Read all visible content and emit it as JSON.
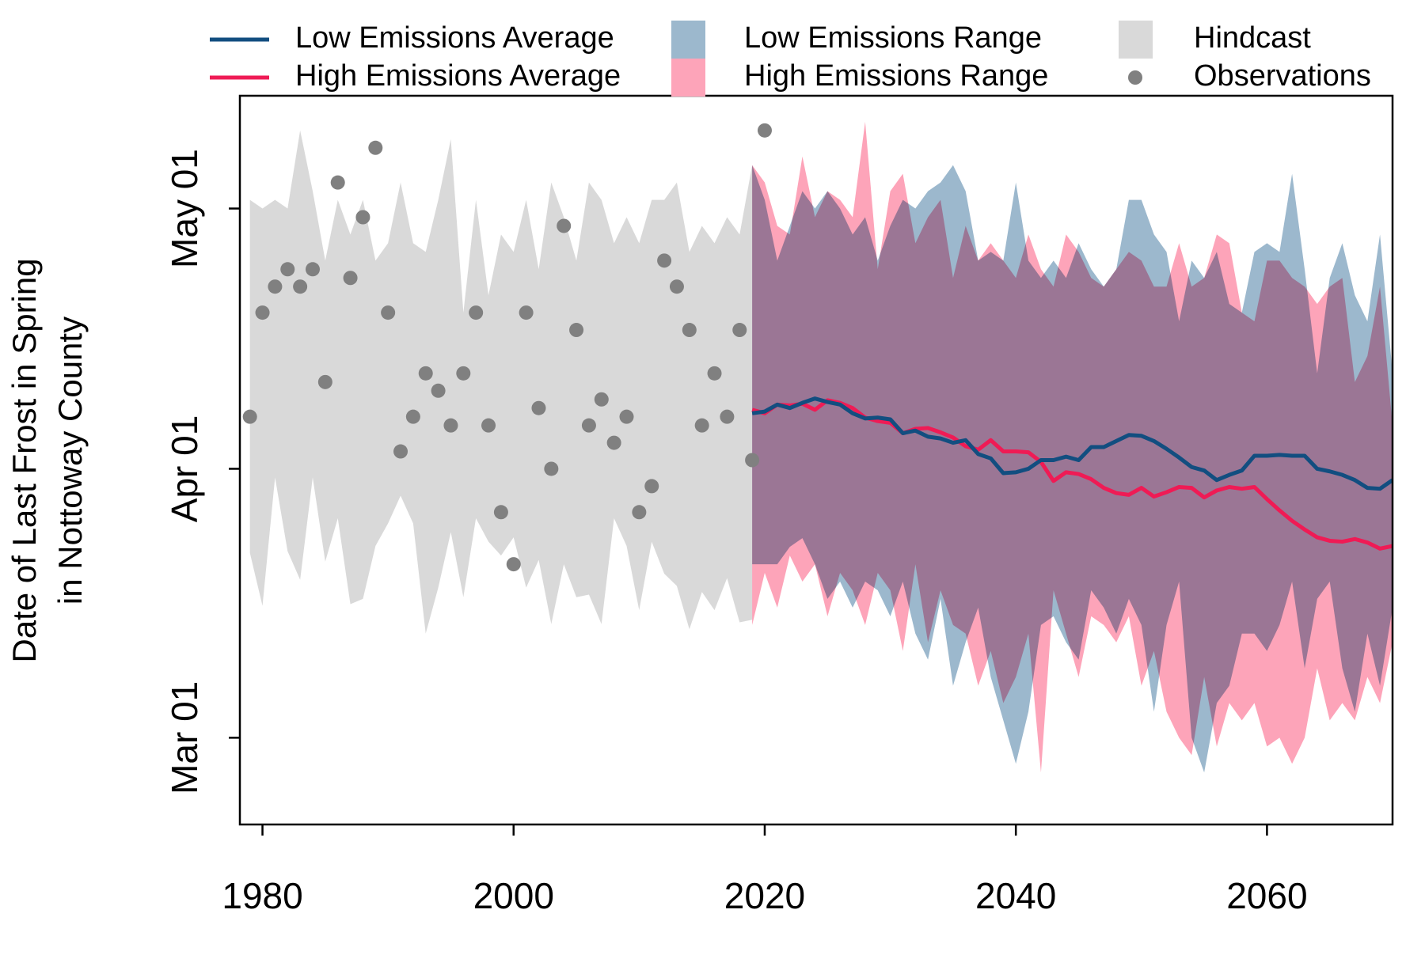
{
  "chart_data": {
    "type": "line",
    "ylabel": [
      "Date of Last Frost in Spring",
      "in Nottoway County"
    ],
    "xlim": [
      1978.2,
      2070
    ],
    "ylim": [
      50,
      134
    ],
    "xticks": [
      1980,
      2000,
      2020,
      2040,
      2060
    ],
    "yticks": [
      {
        "value": 60,
        "label": "Mar 01"
      },
      {
        "value": 91,
        "label": "Apr 01"
      },
      {
        "value": 121,
        "label": "May 01"
      }
    ],
    "legend_rows": 2,
    "series": [
      {
        "name": "Low Emissions Average",
        "kind": "line",
        "color": "#124e80",
        "x": [
          2019,
          2020,
          2021,
          2022,
          2023,
          2024,
          2025,
          2026,
          2027,
          2028,
          2029,
          2030,
          2031,
          2032,
          2033,
          2034,
          2035,
          2036,
          2037,
          2038,
          2039,
          2040,
          2041,
          2042,
          2043,
          2044,
          2045,
          2046,
          2047,
          2048,
          2049,
          2050,
          2051,
          2052,
          2053,
          2054,
          2055,
          2056,
          2057,
          2058,
          2059,
          2060,
          2061,
          2062,
          2063,
          2064,
          2065,
          2066,
          2067,
          2068,
          2069,
          2070
        ],
        "values": [
          97.4,
          97.6,
          98.4,
          98.0,
          98.6,
          99.1,
          98.7,
          98.4,
          97.4,
          96.8,
          96.9,
          96.7,
          95.1,
          95.4,
          94.7,
          94.5,
          94.0,
          94.3,
          92.7,
          92.2,
          90.5,
          90.6,
          91.0,
          92.0,
          92.0,
          92.4,
          92.0,
          93.5,
          93.5,
          94.2,
          94.9,
          94.8,
          94.2,
          93.3,
          92.3,
          91.2,
          90.8,
          89.7,
          90.3,
          90.8,
          92.5,
          92.5,
          92.6,
          92.5,
          92.5,
          91.0,
          90.7,
          90.3,
          89.7,
          88.8,
          88.7,
          89.7
        ]
      },
      {
        "name": "High Emissions Average",
        "kind": "line",
        "color": "#ef1b55",
        "x": [
          2019,
          2020,
          2021,
          2022,
          2023,
          2024,
          2025,
          2026,
          2027,
          2028,
          2029,
          2030,
          2031,
          2032,
          2033,
          2034,
          2035,
          2036,
          2037,
          2038,
          2039,
          2040,
          2041,
          2042,
          2043,
          2044,
          2045,
          2046,
          2047,
          2048,
          2049,
          2050,
          2051,
          2052,
          2053,
          2054,
          2055,
          2056,
          2057,
          2058,
          2059,
          2060,
          2061,
          2062,
          2063,
          2064,
          2065,
          2066,
          2067,
          2068,
          2069,
          2070
        ],
        "values": [
          97.8,
          97.4,
          98.4,
          98.3,
          98.5,
          97.8,
          98.9,
          98.6,
          98.0,
          96.9,
          96.5,
          96.3,
          95.1,
          95.6,
          95.7,
          95.2,
          94.6,
          93.6,
          93.2,
          94.3,
          93.0,
          93.0,
          92.9,
          91.8,
          89.6,
          90.6,
          90.4,
          89.8,
          88.8,
          88.2,
          88.0,
          88.8,
          87.8,
          88.3,
          88.9,
          88.8,
          87.7,
          88.5,
          88.9,
          88.7,
          88.9,
          87.5,
          86.2,
          85.0,
          84.0,
          83.1,
          82.7,
          82.6,
          82.9,
          82.5,
          81.8,
          82.1
        ]
      },
      {
        "name": "Low Emissions Range",
        "kind": "band",
        "color": "#9cb8cd",
        "x": [
          2019,
          2020,
          2021,
          2022,
          2023,
          2024,
          2025,
          2026,
          2027,
          2028,
          2029,
          2030,
          2031,
          2032,
          2033,
          2034,
          2035,
          2036,
          2037,
          2038,
          2039,
          2040,
          2041,
          2042,
          2043,
          2044,
          2045,
          2046,
          2047,
          2048,
          2049,
          2050,
          2051,
          2052,
          2053,
          2054,
          2055,
          2056,
          2057,
          2058,
          2059,
          2060,
          2061,
          2062,
          2063,
          2064,
          2065,
          2066,
          2067,
          2068,
          2069,
          2070
        ],
        "upper": [
          126,
          122,
          115,
          119,
          123,
          121,
          123,
          121,
          118,
          120,
          115,
          119,
          122,
          121,
          123,
          124,
          126,
          123,
          115,
          116,
          115,
          124,
          115,
          113,
          115,
          113,
          117,
          114,
          112,
          114,
          122,
          122,
          118,
          116,
          108,
          115,
          113,
          116,
          110,
          109,
          116,
          117,
          116,
          125,
          114,
          102,
          113,
          117,
          111,
          108,
          118,
          102
        ],
        "lower": [
          80,
          80,
          80,
          82,
          83,
          80,
          76,
          78,
          75,
          78,
          77,
          74,
          78,
          72,
          69,
          76,
          66,
          71,
          75,
          67,
          62,
          57,
          63,
          73,
          74,
          71,
          69,
          77,
          75,
          72,
          76,
          73,
          63,
          73,
          78,
          60,
          56,
          64,
          66,
          72,
          72,
          70,
          73,
          78,
          68,
          76,
          78,
          68,
          63,
          72,
          66,
          75
        ]
      },
      {
        "name": "High Emissions Range",
        "kind": "band",
        "color": "#fda4b9",
        "x": [
          2019,
          2020,
          2021,
          2022,
          2023,
          2024,
          2025,
          2026,
          2027,
          2028,
          2029,
          2030,
          2031,
          2032,
          2033,
          2034,
          2035,
          2036,
          2037,
          2038,
          2039,
          2040,
          2041,
          2042,
          2043,
          2044,
          2045,
          2046,
          2047,
          2048,
          2049,
          2050,
          2051,
          2052,
          2053,
          2054,
          2055,
          2056,
          2057,
          2058,
          2059,
          2060,
          2061,
          2062,
          2063,
          2064,
          2065,
          2066,
          2067,
          2068,
          2069,
          2070
        ],
        "upper": [
          126,
          124,
          119,
          118,
          127,
          120,
          123,
          122,
          120,
          131,
          114,
          123,
          125,
          117,
          120,
          122,
          113,
          119,
          115,
          117,
          115,
          113,
          118,
          114,
          112,
          118,
          116,
          113,
          112,
          114,
          116,
          115,
          112,
          112,
          117,
          112,
          113,
          118,
          117,
          109,
          108,
          115,
          115,
          113,
          112,
          110,
          112,
          113,
          101,
          104,
          112,
          96
        ],
        "lower": [
          73,
          79,
          75,
          81,
          78,
          80,
          74,
          79,
          77,
          73,
          79,
          77,
          70,
          80,
          71,
          77,
          73,
          72,
          66,
          70,
          64,
          67,
          72,
          56,
          77,
          72,
          67,
          74,
          73,
          71,
          74,
          66,
          70,
          63,
          60,
          58,
          67,
          59,
          64,
          62,
          64,
          59,
          60,
          57,
          60,
          68,
          62,
          64,
          62,
          67,
          64,
          71
        ]
      },
      {
        "name": "Hindcast",
        "kind": "band",
        "color": "#d9d9d9",
        "x": [
          1979,
          1980,
          1981,
          1982,
          1983,
          1984,
          1985,
          1986,
          1987,
          1988,
          1989,
          1990,
          1991,
          1992,
          1993,
          1994,
          1995,
          1996,
          1997,
          1998,
          1999,
          2000,
          2001,
          2002,
          2003,
          2004,
          2005,
          2006,
          2007,
          2008,
          2009,
          2010,
          2011,
          2012,
          2013,
          2014,
          2015,
          2016,
          2017,
          2018,
          2019
        ],
        "upper": [
          122,
          121,
          122,
          121,
          130,
          123,
          115,
          122,
          118,
          122,
          115,
          117,
          124,
          117,
          116,
          122,
          129,
          109,
          122,
          111,
          118,
          116,
          122,
          114,
          124,
          120,
          115,
          124,
          122,
          117,
          120,
          117,
          122,
          122,
          124,
          116,
          119,
          117,
          120,
          118,
          126
        ],
        "lower": [
          81.3,
          75.2,
          90,
          81.5,
          78.2,
          90,
          80.3,
          85.3,
          75.4,
          76,
          82.1,
          84.7,
          87.9,
          84.7,
          72,
          77.3,
          83.7,
          76.2,
          85.3,
          82.6,
          81,
          83.1,
          77.3,
          80.5,
          73.1,
          80,
          76.2,
          76.5,
          73.1,
          85.3,
          82.1,
          74.7,
          82.6,
          78.9,
          77.5,
          72.5,
          76.8,
          74.7,
          78.4,
          73.3,
          73.6
        ]
      },
      {
        "name": "Observations",
        "kind": "points",
        "color": "#808080",
        "x": [
          1979,
          1980,
          1981,
          1982,
          1983,
          1984,
          1985,
          1986,
          1987,
          1988,
          1989,
          1990,
          1991,
          1992,
          1993,
          1994,
          1995,
          1996,
          1997,
          1998,
          1999,
          2000,
          2001,
          2002,
          2003,
          2004,
          2005,
          2006,
          2007,
          2008,
          2009,
          2010,
          2011,
          2012,
          2013,
          2014,
          2015,
          2016,
          2017,
          2018,
          2019,
          2020
        ],
        "values": [
          97,
          109,
          112,
          114,
          112,
          114,
          101,
          124,
          113,
          120,
          128,
          109,
          93,
          97,
          102,
          100,
          96,
          102,
          109,
          96,
          86,
          80,
          109,
          98,
          91,
          119,
          107,
          96,
          99,
          94,
          97,
          86,
          89,
          115,
          112,
          107,
          96,
          102,
          97,
          107,
          92,
          130
        ]
      }
    ]
  }
}
